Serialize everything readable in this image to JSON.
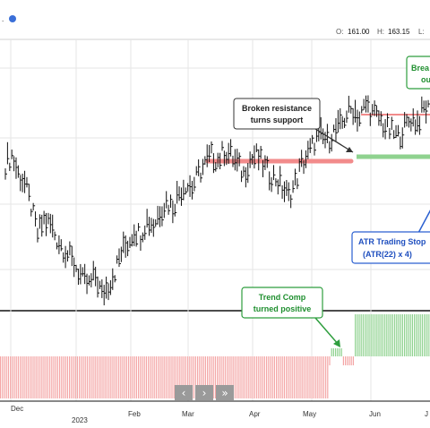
{
  "header": {
    "ticker_fragment": ".",
    "open_label": "O:",
    "open_value": "161.00",
    "high_label": "H:",
    "high_value": "163.15",
    "low_label": "L:"
  },
  "nav": {
    "prev_glyph": "‹",
    "next_glyph": "›",
    "end_glyph": "»"
  },
  "annotations": {
    "broken_resistance_line1": "Broken resistance",
    "broken_resistance_line2": "turns support",
    "breakout_line1": "Brea",
    "breakout_line2": "ou",
    "atr_line1": "ATR Trading Stop",
    "atr_line2": "(ATR(22) x 4)",
    "trend_line1": "Trend Comp",
    "trend_line2": "turned positive"
  },
  "colors": {
    "bar": "#111111",
    "resistance": "#f28b8b",
    "support": "#8fd28f",
    "trend_positive": "#8fd28f",
    "trend_negative": "#f4a6a6",
    "callout_dark_border": "#333333",
    "callout_green_border": "#2e9e3e",
    "callout_blue_border": "#2a5fd0",
    "green_text": "#1f8f2f",
    "blue_text": "#1f4fbf"
  },
  "chart_data": {
    "type": "ohlc",
    "x_axis_labels": [
      "Dec",
      "2023",
      "Feb",
      "Mar",
      "Apr",
      "May",
      "Jun",
      "J"
    ],
    "price_bars": [
      150,
      152,
      148,
      146,
      141,
      135,
      138,
      137,
      134,
      132,
      130,
      128,
      125,
      124,
      126,
      122,
      124,
      127,
      131,
      133,
      136,
      135,
      138,
      137,
      140,
      142,
      141,
      144,
      146,
      145,
      148,
      150,
      152,
      151,
      153,
      152,
      150,
      148,
      151,
      152,
      150,
      148,
      147,
      145,
      143,
      146,
      150,
      152,
      155,
      156,
      155,
      157,
      158,
      161,
      162,
      160,
      163,
      161,
      160,
      158,
      157,
      156,
      158,
      160,
      159,
      162
    ],
    "price_range": [
      120,
      175
    ],
    "resistance_1": 155,
    "resistance_2": 163,
    "atr_stop": 156,
    "trend_comp_segments": {
      "negative_through": "May",
      "positive_from": "late May"
    }
  }
}
